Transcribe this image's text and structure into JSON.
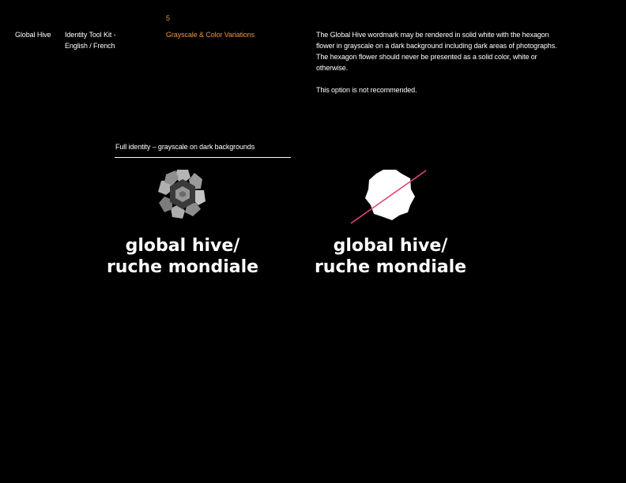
{
  "header": {
    "page_number": "5",
    "brand": "Global Hive",
    "kit_title_line1": "Identity Tool Kit -",
    "kit_title_line2": "English / French",
    "section_title": "Grayscale & Color Variations"
  },
  "description": {
    "paragraph1": "The Global Hive wordmark may be rendered in solid white with the hexagon flower in grayscale on a dark background including dark areas of photographs. The hexagon flower should never be presented as a solid color, white or otherwise.",
    "paragraph2": "This option is not recommended."
  },
  "example": {
    "caption": "Full identity – grayscale on dark backgrounds"
  },
  "wordmark": {
    "line1": "global hive/",
    "line2": "ruche mondiale"
  },
  "colors": {
    "background": "#000000",
    "accent": "#f0953c",
    "slash": "#e0457b"
  },
  "icons": [
    "hexagon-flower-grayscale-icon",
    "hexagon-flower-white-icon",
    "prohibited-slash-icon"
  ]
}
